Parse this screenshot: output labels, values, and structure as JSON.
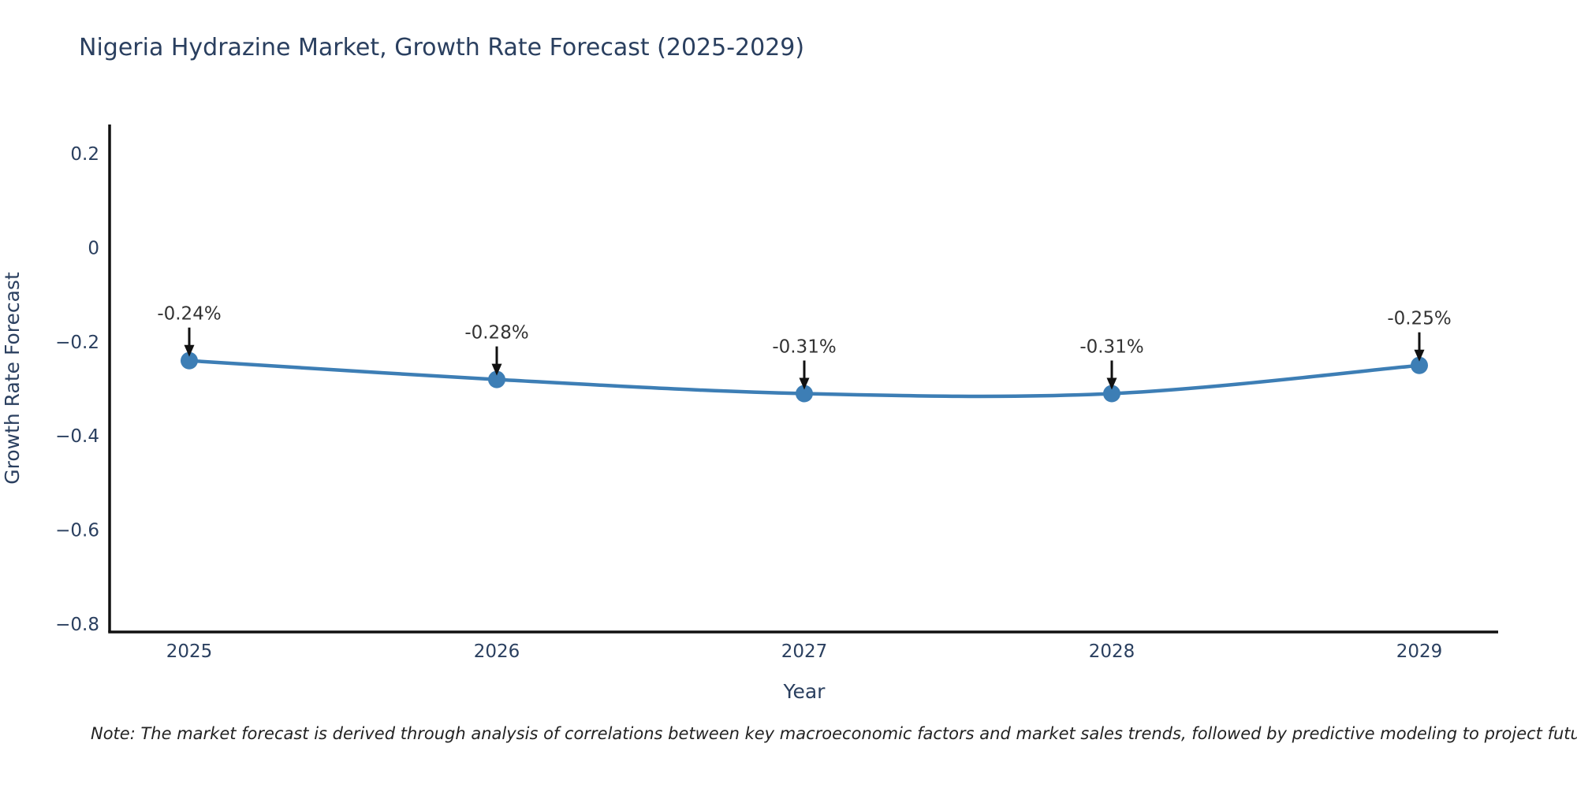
{
  "page": {
    "note": "Note: The market forecast is derived through analysis of correlations between key macroeconomic factors and market sales trends, followed by predictive modeling to project future sales"
  },
  "chart_data": {
    "type": "line",
    "title": "Nigeria Hydrazine Market, Growth Rate Forecast (2025-2029)",
    "xlabel": "Year",
    "ylabel": "Growth Rate Forecast",
    "x": [
      2025,
      2026,
      2027,
      2028,
      2029
    ],
    "x_tick_labels": [
      "2025",
      "2026",
      "2027",
      "2028",
      "2029"
    ],
    "series": [
      {
        "name": "Growth Rate Forecast",
        "values": [
          -0.24,
          -0.28,
          -0.31,
          -0.31,
          -0.25
        ],
        "point_labels": [
          "-0.24%",
          "-0.28%",
          "-0.31%",
          "-0.31%",
          "-0.25%"
        ]
      }
    ],
    "y_ticks": [
      0.2,
      0,
      -0.2,
      -0.4,
      -0.6,
      -0.8
    ],
    "y_tick_labels": [
      "0.2",
      "0",
      "−0.2",
      "−0.4",
      "−0.6",
      "−0.8"
    ],
    "ylim": [
      -0.817,
      0.262
    ],
    "grid": false,
    "legend": "none",
    "line_shape": "spline",
    "colors": {
      "line": "#3d7eb5",
      "marker": "#3d7eb5",
      "axis": "#111111",
      "axis_text": "#2a3f5f",
      "annotation_text": "#333333",
      "arrow": "#111111",
      "background": "#ffffff"
    }
  }
}
